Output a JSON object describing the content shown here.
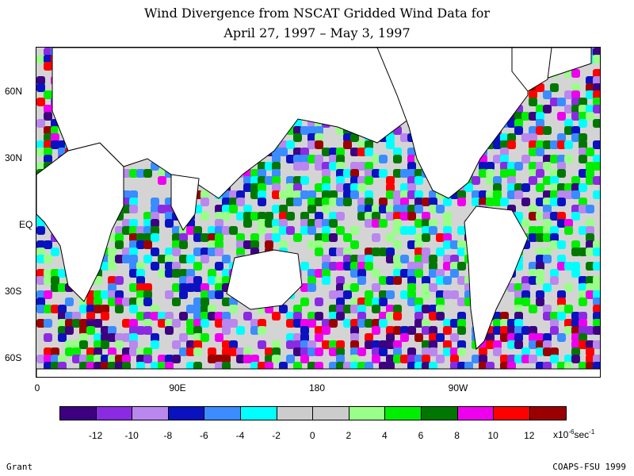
{
  "title_line1": "Wind Divergence from NSCAT Gridded Wind Data for",
  "title_line2": "April 27, 1997 – May 3, 1997",
  "lat_labels": [
    "60N",
    "30N",
    "EQ",
    "30S",
    "60S"
  ],
  "lon_labels": [
    "0",
    "90E",
    "180",
    "90W"
  ],
  "colorbar": {
    "colors": [
      "#3d0080",
      "#8a2be2",
      "#b987ee",
      "#0a12c0",
      "#3a8cff",
      "#00ffff",
      "#cccccc",
      "#cccccc",
      "#99ff88",
      "#00ee00",
      "#007700",
      "#ee00ee",
      "#ff0000",
      "#9a0000"
    ],
    "tick_labels": [
      "-12",
      "-10",
      "-8",
      "-6",
      "-4",
      "-2",
      "0",
      "2",
      "4",
      "6",
      "8",
      "10",
      "12"
    ],
    "units_text": "x10",
    "units_exp": "-6",
    "units_suffix": "sec",
    "units_suffix_exp": "-1"
  },
  "credit_left": "Grant",
  "credit_right": "COAPS-FSU 1999"
}
